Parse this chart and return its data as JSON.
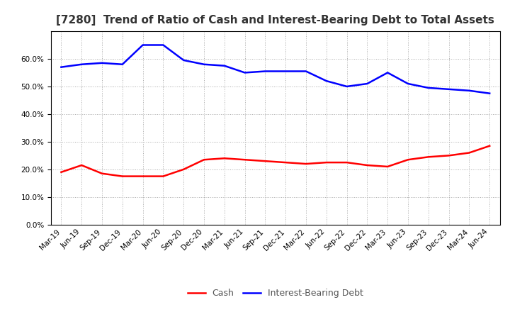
{
  "title": "[7280]  Trend of Ratio of Cash and Interest-Bearing Debt to Total Assets",
  "labels": [
    "Mar-19",
    "Jun-19",
    "Sep-19",
    "Dec-19",
    "Mar-20",
    "Jun-20",
    "Sep-20",
    "Dec-20",
    "Mar-21",
    "Jun-21",
    "Sep-21",
    "Dec-21",
    "Mar-22",
    "Jun-22",
    "Sep-22",
    "Dec-22",
    "Mar-23",
    "Jun-23",
    "Sep-23",
    "Dec-23",
    "Mar-24",
    "Jun-24"
  ],
  "cash": [
    19.0,
    21.5,
    18.5,
    17.5,
    17.5,
    17.5,
    20.0,
    23.5,
    24.0,
    23.5,
    23.0,
    22.5,
    22.0,
    22.5,
    22.5,
    21.5,
    21.0,
    23.5,
    24.5,
    25.0,
    26.0,
    28.5
  ],
  "interest_bearing_debt": [
    57.0,
    58.0,
    58.5,
    58.0,
    65.0,
    65.0,
    59.5,
    58.0,
    57.5,
    55.0,
    55.5,
    55.5,
    55.5,
    52.0,
    50.0,
    51.0,
    55.0,
    51.0,
    49.5,
    49.0,
    48.5,
    47.5
  ],
  "cash_color": "#ff0000",
  "debt_color": "#0000ff",
  "background_color": "#ffffff",
  "plot_bg_color": "#ffffff",
  "grid_color": "#aaaaaa",
  "ylim": [
    0,
    70
  ],
  "yticks": [
    0,
    10,
    20,
    30,
    40,
    50,
    60
  ],
  "legend_cash": "Cash",
  "legend_debt": "Interest-Bearing Debt",
  "title_fontsize": 11,
  "tick_fontsize": 7.5,
  "legend_fontsize": 9
}
